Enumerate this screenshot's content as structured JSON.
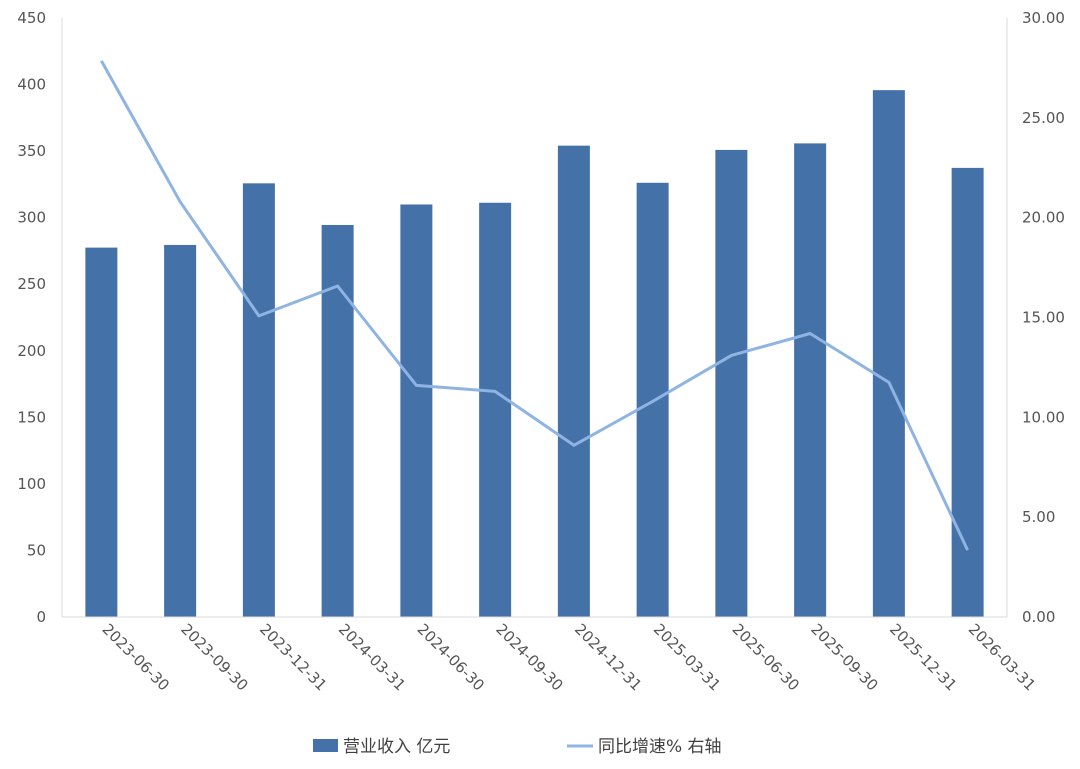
{
  "chart_data": {
    "type": "bar+line",
    "categories": [
      "2023-06-30",
      "2023-09-30",
      "2023-12-31",
      "2024-03-31",
      "2024-06-30",
      "2024-09-30",
      "2024-12-31",
      "2025-03-31",
      "2025-06-30",
      "2025-09-30",
      "2025-12-31",
      "2026-03-31"
    ],
    "series": [
      {
        "name": "营业收入 亿元",
        "type": "bar",
        "axis": "left",
        "color": "#4472a8",
        "values": [
          277.5,
          279.5,
          325.8,
          294.5,
          309.9,
          311.2,
          354.1,
          326.2,
          350.9,
          355.8,
          395.8,
          337.4
        ]
      },
      {
        "name": "同比增速% 右轴",
        "type": "line",
        "axis": "right",
        "color": "#8fb4e3",
        "values": [
          27.85,
          20.8,
          15.08,
          16.58,
          11.6,
          11.3,
          8.6,
          10.8,
          13.1,
          14.2,
          11.75,
          3.35
        ]
      }
    ],
    "y_left": {
      "min": 0,
      "max": 450,
      "step": 50,
      "ticks": [
        "0",
        "50",
        "100",
        "150",
        "200",
        "250",
        "300",
        "350",
        "400",
        "450"
      ]
    },
    "y_right": {
      "min": 0,
      "max": 30,
      "step": 5,
      "ticks": [
        "0.00",
        "5.00",
        "10.00",
        "15.00",
        "20.00",
        "25.00",
        "30.00"
      ]
    },
    "grid": false,
    "legend_position": "bottom"
  }
}
